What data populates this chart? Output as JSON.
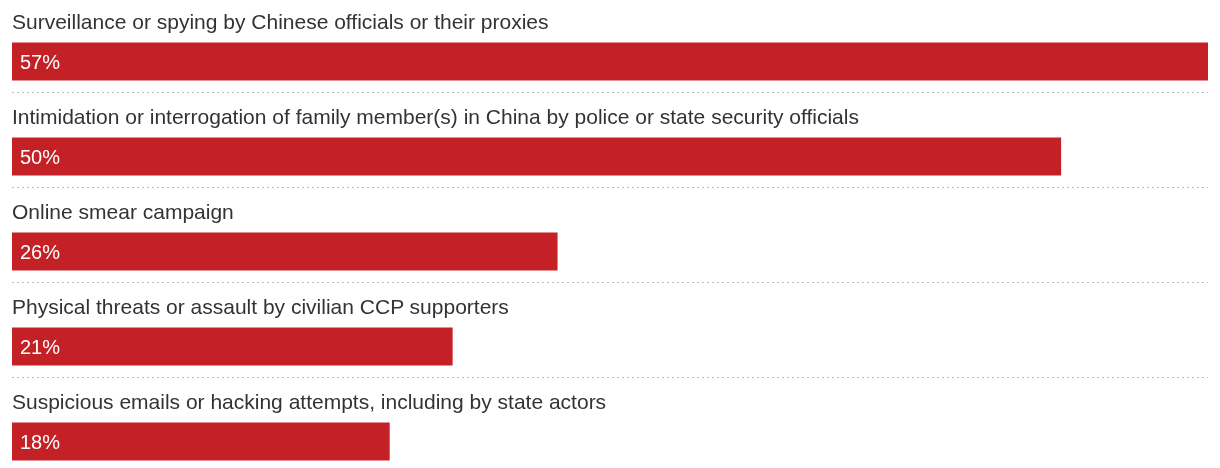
{
  "chart_data": {
    "type": "bar",
    "orientation": "horizontal",
    "categories": [
      "Surveillance or spying by Chinese officials or their proxies",
      "Intimidation or interrogation of family member(s) in China by police or state security officials",
      "Online smear campaign",
      "Physical threats or assault by civilian CCP supporters",
      "Suspicious emails or hacking attempts, including by state actors"
    ],
    "values": [
      57,
      50,
      26,
      21,
      18
    ],
    "value_labels": [
      "57%",
      "50%",
      "26%",
      "21%",
      "18%"
    ],
    "color": "#c42127",
    "grid": "y"
  }
}
